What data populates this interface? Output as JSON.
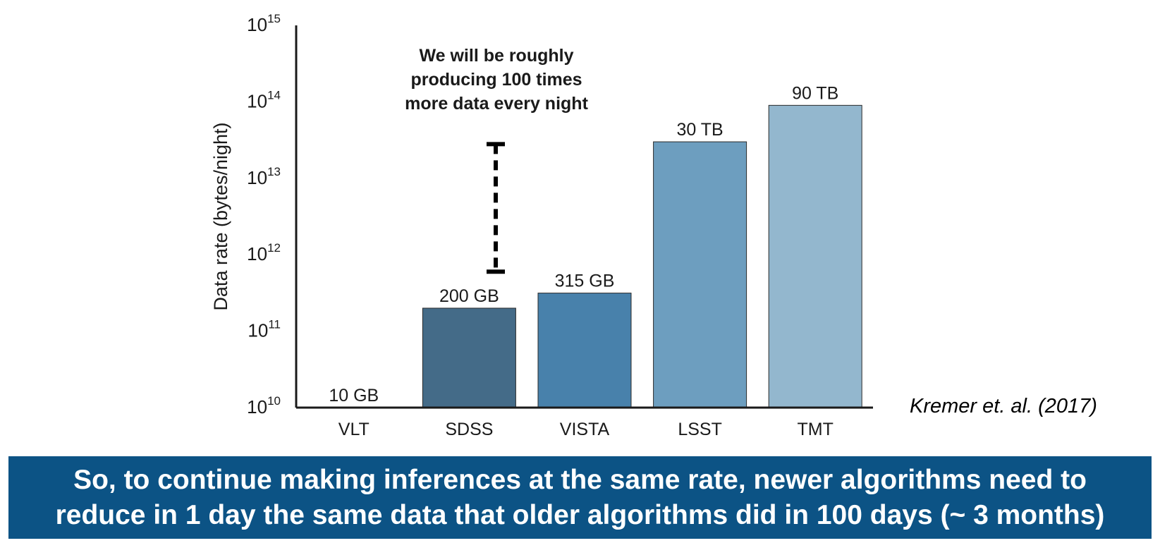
{
  "chart_data": {
    "type": "bar",
    "categories": [
      "VLT",
      "SDSS",
      "VISTA",
      "LSST",
      "TMT"
    ],
    "values": [
      10000000000,
      200000000000,
      315000000000,
      30000000000000,
      90000000000000
    ],
    "data_labels": [
      "10 GB",
      "200 GB",
      "315 GB",
      "30 TB",
      "90 TB"
    ],
    "colors": [
      "#394b5e",
      "#446b88",
      "#4881ab",
      "#6d9ebf",
      "#93b7ce"
    ],
    "ylabel": "Data rate (bytes/night)",
    "yscale": "log",
    "ylim": [
      10000000000,
      1000000000000000
    ],
    "yticks": [
      {
        "value": 10000000000,
        "base": "10",
        "exp": "10"
      },
      {
        "value": 100000000000,
        "base": "10",
        "exp": "11"
      },
      {
        "value": 1000000000000,
        "base": "10",
        "exp": "12"
      },
      {
        "value": 10000000000000,
        "base": "10",
        "exp": "13"
      },
      {
        "value": 100000000000000,
        "base": "10",
        "exp": "14"
      },
      {
        "value": 1000000000000000,
        "base": "10",
        "exp": "15"
      }
    ],
    "grid": false,
    "annotation": {
      "lines": [
        "We will be roughly",
        "producing 100 times",
        "more data every night"
      ],
      "range": [
        600000000000,
        28000000000000
      ]
    }
  },
  "citation": "Kremer et. al. (2017)",
  "banner": {
    "line1": "So, to continue making inferences at the same rate, newer algorithms need to",
    "line2": "reduce in 1 day the same data that older algorithms did in 100 days (~ 3 months)"
  }
}
